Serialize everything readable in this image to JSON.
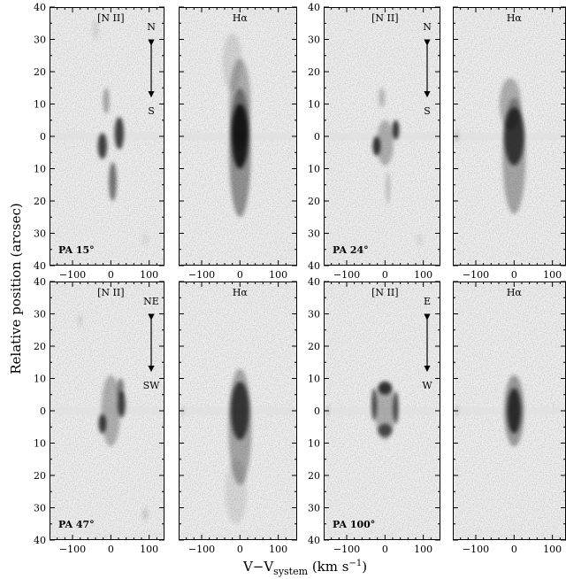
{
  "figure": {
    "ylabel": "Relative position (arcsec)",
    "xlabel": {
      "main": "V−V",
      "subscript": "system",
      "unit_open": " (km s",
      "superscript": "−1",
      "unit_close": ")"
    },
    "x_ticks": [
      "−100",
      "0",
      "100"
    ],
    "y_ticks": [
      "40",
      "30",
      "20",
      "10",
      "0",
      "10",
      "20",
      "30",
      "40"
    ]
  },
  "groups": [
    {
      "pa_label": "PA 15°",
      "orientation": {
        "top": "N",
        "bottom": "S"
      },
      "panels": [
        {
          "line": "[N II]",
          "blobs": [
            {
              "v": -22,
              "p": -3,
              "sx": 12,
              "sy": 4,
              "a": 0.85
            },
            {
              "v": 22,
              "p": 1,
              "sx": 12,
              "sy": 5,
              "a": 0.85
            },
            {
              "v": 5,
              "p": -14,
              "sx": 10,
              "sy": 6,
              "a": 0.6
            },
            {
              "v": -12,
              "p": 11,
              "sx": 8,
              "sy": 4,
              "a": 0.35
            },
            {
              "v": -40,
              "p": 33,
              "sx": 8,
              "sy": 3,
              "a": 0.1
            },
            {
              "v": 90,
              "p": -32,
              "sx": 8,
              "sy": 2,
              "a": 0.08
            }
          ]
        },
        {
          "line": "Hα",
          "blobs": [
            {
              "v": 0,
              "p": 0,
              "sx": 22,
              "sy": 10,
              "a": 0.95
            },
            {
              "v": 0,
              "p": -5,
              "sx": 28,
              "sy": 20,
              "a": 0.45
            },
            {
              "v": 0,
              "p": 10,
              "sx": 28,
              "sy": 14,
              "a": 0.3
            },
            {
              "v": -20,
              "p": 23,
              "sx": 25,
              "sy": 9,
              "a": 0.12
            }
          ]
        }
      ]
    },
    {
      "pa_label": "PA 24°",
      "orientation": {
        "top": "N",
        "bottom": "S"
      },
      "panels": [
        {
          "line": "[N II]",
          "blobs": [
            {
              "v": -22,
              "p": -3,
              "sx": 10,
              "sy": 3,
              "a": 0.9
            },
            {
              "v": 28,
              "p": 2,
              "sx": 9,
              "sy": 3,
              "a": 0.9
            },
            {
              "v": 0,
              "p": -2,
              "sx": 22,
              "sy": 7,
              "a": 0.3
            },
            {
              "v": -8,
              "p": 12,
              "sx": 8,
              "sy": 3,
              "a": 0.25
            },
            {
              "v": 8,
              "p": -16,
              "sx": 6,
              "sy": 5,
              "a": 0.2
            },
            {
              "v": 90,
              "p": -32,
              "sx": 8,
              "sy": 2,
              "a": 0.08
            }
          ]
        },
        {
          "line": "Hα",
          "blobs": [
            {
              "v": 0,
              "p": 0,
              "sx": 26,
              "sy": 9,
              "a": 0.8
            },
            {
              "v": 0,
              "p": -6,
              "sx": 30,
              "sy": 18,
              "a": 0.35
            },
            {
              "v": -10,
              "p": 10,
              "sx": 28,
              "sy": 8,
              "a": 0.3
            },
            {
              "v": -150,
              "p": 0,
              "sx": 6,
              "sy": 2,
              "a": 0.15
            }
          ]
        }
      ]
    },
    {
      "pa_label": "PA 47°",
      "orientation": {
        "top": "NE",
        "bottom": "SW"
      },
      "panels": [
        {
          "line": "[N II]",
          "blobs": [
            {
              "v": -22,
              "p": -4,
              "sx": 10,
              "sy": 3,
              "a": 0.85
            },
            {
              "v": 28,
              "p": 2,
              "sx": 10,
              "sy": 4,
              "a": 0.85
            },
            {
              "v": 25,
              "p": 7,
              "sx": 9,
              "sy": 3,
              "a": 0.55
            },
            {
              "v": 0,
              "p": 0,
              "sx": 25,
              "sy": 11,
              "a": 0.3
            },
            {
              "v": -80,
              "p": 28,
              "sx": 6,
              "sy": 2,
              "a": 0.1
            },
            {
              "v": 90,
              "p": -32,
              "sx": 7,
              "sy": 2,
              "a": 0.15
            }
          ]
        },
        {
          "line": "Hα",
          "blobs": [
            {
              "v": 0,
              "p": 0,
              "sx": 24,
              "sy": 9,
              "a": 0.8
            },
            {
              "v": 0,
              "p": -5,
              "sx": 30,
              "sy": 18,
              "a": 0.35
            },
            {
              "v": -10,
              "p": -25,
              "sx": 28,
              "sy": 10,
              "a": 0.1
            },
            {
              "v": -150,
              "p": 0,
              "sx": 5,
              "sy": 2,
              "a": 0.1
            }
          ]
        }
      ]
    },
    {
      "pa_label": "PA 100°",
      "orientation": {
        "top": "E",
        "bottom": "W"
      },
      "panels": [
        {
          "line": "[N II]",
          "blobs": [
            {
              "v": -28,
              "p": 2,
              "sx": 7,
              "sy": 5,
              "a": 0.8
            },
            {
              "v": 28,
              "p": 1,
              "sx": 7,
              "sy": 5,
              "a": 0.8
            },
            {
              "v": 0,
              "p": 7,
              "sx": 18,
              "sy": 2,
              "a": 0.85
            },
            {
              "v": 0,
              "p": -6,
              "sx": 18,
              "sy": 2,
              "a": 0.7
            },
            {
              "v": 0,
              "p": 0,
              "sx": 26,
              "sy": 9,
              "a": 0.3
            },
            {
              "v": -150,
              "p": 0,
              "sx": 5,
              "sy": 2,
              "a": 0.12
            }
          ]
        },
        {
          "line": "Hα",
          "blobs": [
            {
              "v": 0,
              "p": 0,
              "sx": 18,
              "sy": 7,
              "a": 0.85
            },
            {
              "v": 0,
              "p": 0,
              "sx": 26,
              "sy": 11,
              "a": 0.4
            },
            {
              "v": -150,
              "p": 0,
              "sx": 5,
              "sy": 2,
              "a": 0.12
            }
          ]
        }
      ]
    }
  ]
}
